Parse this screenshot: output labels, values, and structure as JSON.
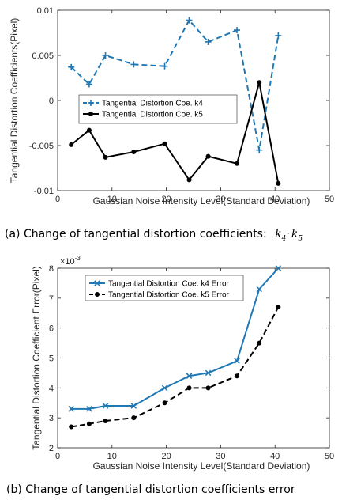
{
  "chart_data": [
    {
      "type": "line",
      "xlabel": "Gaussian Noise Intensity Level(Standard Deviation)",
      "ylabel": "Tangential Distortion Coefficients(Pixel)",
      "xlim": [
        0,
        50
      ],
      "ylim": [
        -0.01,
        0.01
      ],
      "xticks": [
        "0",
        "10",
        "20",
        "30",
        "40",
        "50"
      ],
      "yticks": [
        "-0.01",
        "-0.005",
        "0",
        "0.005",
        "0.01"
      ],
      "legend": "upper-left",
      "caption": {
        "text": "(a) Change of tangential distortion coefficients:",
        "k4": "k",
        "k4_sub": "4",
        "sep": "·",
        "k5": "k",
        "k5_sub": "5"
      },
      "series": [
        {
          "name": "Tangential Distortion Coe. k4",
          "color": "#1f77b4",
          "dash": "dashed",
          "marker": "plus",
          "x": [
            2.5,
            5.8,
            8.8,
            14,
            19.7,
            24.2,
            27.7,
            33,
            37.1,
            40.6
          ],
          "y": [
            0.0037,
            0.0018,
            0.005,
            0.004,
            0.0038,
            0.0089,
            0.0065,
            0.0078,
            -0.0055,
            0.0072
          ]
        },
        {
          "name": "Tangential Distortion Coe. k5",
          "color": "#000000",
          "dash": "solid",
          "marker": "dot",
          "x": [
            2.5,
            5.8,
            8.8,
            14,
            19.7,
            24.2,
            27.7,
            33,
            37.1,
            40.6
          ],
          "y": [
            -0.0049,
            -0.0033,
            -0.0063,
            -0.0057,
            -0.0048,
            -0.0088,
            -0.0062,
            -0.007,
            0.002,
            -0.0092
          ]
        }
      ]
    },
    {
      "type": "line",
      "xlabel": "Gaussian Noise Intensity Level(Standard Deviation)",
      "ylabel": "Tangential Distortion Coefficient Error(Pixel)",
      "xlim": [
        0,
        50
      ],
      "ylim": [
        2,
        8
      ],
      "y_multiplier": "×10",
      "y_multiplier_exp": "-3",
      "xticks": [
        "0",
        "10",
        "20",
        "30",
        "40",
        "50"
      ],
      "yticks": [
        "2",
        "3",
        "4",
        "5",
        "6",
        "7",
        "8"
      ],
      "legend": "upper-left",
      "caption": {
        "text": "(b) Change of tangential distortion coefficients error"
      },
      "series": [
        {
          "name": "Tangential Distortion Coe. k4 Error",
          "color": "#1f77b4",
          "dash": "solid",
          "marker": "x",
          "x": [
            2.5,
            5.8,
            8.8,
            14,
            19.7,
            24.2,
            27.7,
            33,
            37.1,
            40.6
          ],
          "y": [
            3.3,
            3.3,
            3.4,
            3.4,
            4.0,
            4.4,
            4.5,
            4.9,
            7.3,
            8.0
          ]
        },
        {
          "name": "Tangential Distortion Coe. k5 Error",
          "color": "#000000",
          "dash": "dashed",
          "marker": "dot",
          "x": [
            2.5,
            5.8,
            8.8,
            14,
            19.7,
            24.2,
            27.7,
            33,
            37.1,
            40.6
          ],
          "y": [
            2.7,
            2.8,
            2.9,
            3.0,
            3.5,
            4.0,
            4.0,
            4.4,
            5.5,
            6.7
          ]
        }
      ]
    }
  ]
}
